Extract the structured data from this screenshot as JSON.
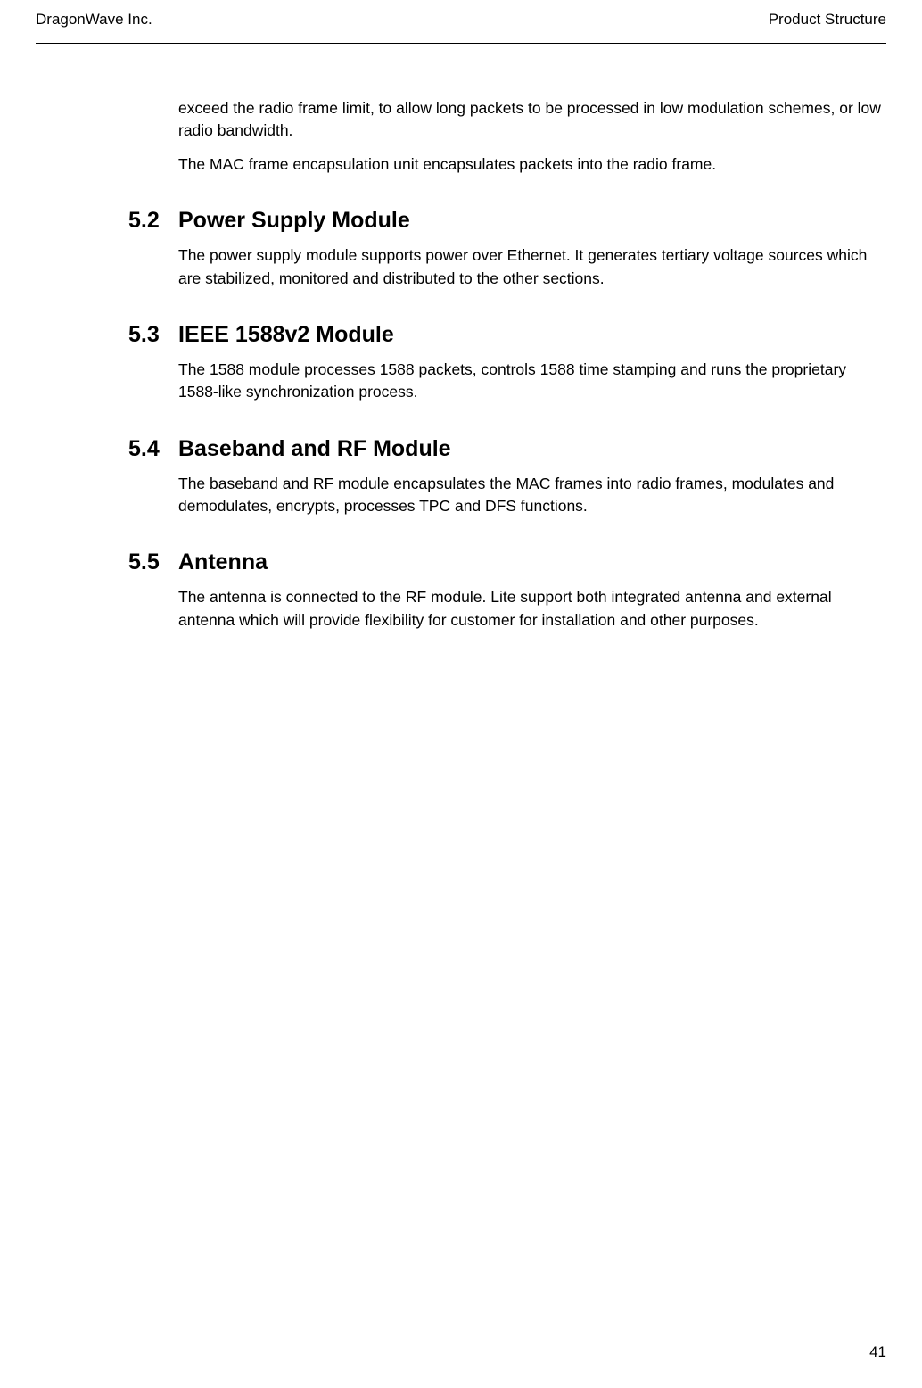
{
  "header": {
    "left": "DragonWave Inc.",
    "right": "Product Structure"
  },
  "intro_paras": [
    "exceed the radio frame limit, to allow long packets to be processed in low modulation schemes, or low radio bandwidth.",
    "The MAC frame encapsulation unit encapsulates packets into the radio frame."
  ],
  "sections": [
    {
      "num": "5.2",
      "title": "Power Supply Module",
      "body": "The power supply module supports power over Ethernet. It generates tertiary voltage sources which are stabilized, monitored and distributed to the other sections."
    },
    {
      "num": "5.3",
      "title": "IEEE 1588v2 Module",
      "body": "The 1588 module processes 1588 packets, controls 1588 time stamping and runs the proprietary 1588-like synchronization process."
    },
    {
      "num": "5.4",
      "title": "Baseband and RF Module",
      "body": "The baseband and RF module encapsulates the MAC frames into radio frames, modulates and demodulates, encrypts, processes TPC and DFS functions."
    },
    {
      "num": "5.5",
      "title": "Antenna",
      "body": "The antenna is connected to the RF module. Lite support both integrated antenna and external antenna which will provide flexibility for customer for installation and other purposes."
    }
  ],
  "page_number": "41"
}
